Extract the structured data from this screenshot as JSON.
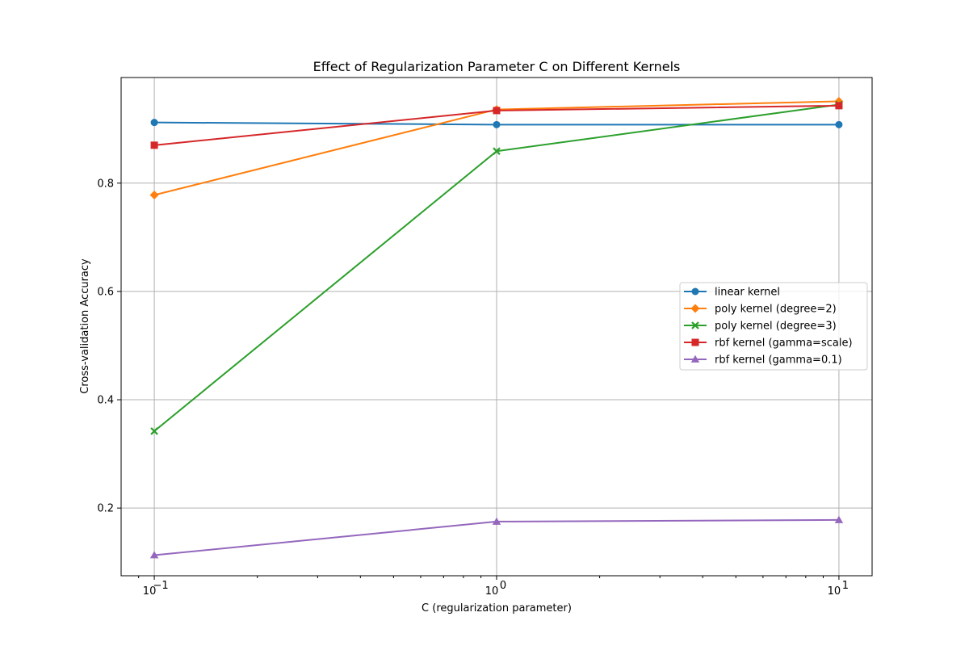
{
  "chart_data": {
    "type": "line",
    "title": "Effect of Regularization Parameter C on Different Kernels",
    "xlabel": "C (regularization parameter)",
    "ylabel": "Cross-validation Accuracy",
    "xscale": "log",
    "xlim": [
      0.08,
      12.5
    ],
    "ylim": [
      0.075,
      0.995
    ],
    "x_ticks": [
      {
        "value": 0.1,
        "base": "10",
        "exp": "−1"
      },
      {
        "value": 1,
        "base": "10",
        "exp": "0"
      },
      {
        "value": 10,
        "base": "10",
        "exp": "1"
      }
    ],
    "y_ticks": [
      {
        "value": 0.2,
        "label": "0.2"
      },
      {
        "value": 0.4,
        "label": "0.4"
      },
      {
        "value": 0.6,
        "label": "0.6"
      },
      {
        "value": 0.8,
        "label": "0.8"
      }
    ],
    "grid": true,
    "legend_position": "center-right",
    "x": [
      0.1,
      1,
      10
    ],
    "series": [
      {
        "name": "linear kernel",
        "values": [
          0.912,
          0.908,
          0.908
        ],
        "color": "#1f77b4",
        "marker": "circle"
      },
      {
        "name": "poly kernel (degree=2)",
        "values": [
          0.778,
          0.936,
          0.951
        ],
        "color": "#ff7f0e",
        "marker": "diamond"
      },
      {
        "name": "poly kernel (degree=3)",
        "values": [
          0.342,
          0.859,
          0.945
        ],
        "color": "#2ca02c",
        "marker": "x"
      },
      {
        "name": "rbf kernel (gamma=scale)",
        "values": [
          0.87,
          0.934,
          0.943
        ],
        "color": "#d62728",
        "marker": "square"
      },
      {
        "name": "rbf kernel (gamma=0.1)",
        "values": [
          0.113,
          0.175,
          0.178
        ],
        "color": "#9467bd",
        "marker": "triangle"
      }
    ]
  }
}
